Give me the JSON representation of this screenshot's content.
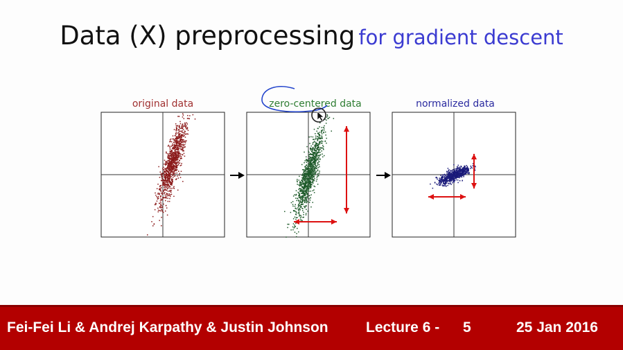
{
  "slide": {
    "title_main": "Data (X) preprocessing",
    "title_sub": "for gradient descent"
  },
  "figure": {
    "plots": [
      {
        "title": "original data",
        "color": "#8b1a1a",
        "title_color": "#a03030"
      },
      {
        "title": "zero-centered data",
        "color": "#1e5a2a",
        "title_color": "#2e7d32"
      },
      {
        "title": "normalized data",
        "color": "#1a1a7a",
        "title_color": "#2a2aa0"
      }
    ],
    "arrow_color": "#dd1111",
    "annotation_color": "#2244cc"
  },
  "chart_data": [
    {
      "type": "scatter",
      "title": "original data",
      "xlim": [
        -10,
        10
      ],
      "ylim": [
        -10,
        10
      ],
      "center": [
        1.5,
        2.0
      ],
      "spread": "elongated diagonal cloud"
    },
    {
      "type": "scatter",
      "title": "zero-centered data",
      "xlim": [
        -10,
        10
      ],
      "ylim": [
        -10,
        10
      ],
      "center": [
        0,
        0
      ],
      "spread": "elongated diagonal cloud"
    },
    {
      "type": "scatter",
      "title": "normalized data",
      "xlim": [
        -10,
        10
      ],
      "ylim": [
        -10,
        10
      ],
      "center": [
        0,
        0
      ],
      "spread": "compact cloud"
    }
  ],
  "footer": {
    "authors": "Fei-Fei Li & Andrej Karpathy & Justin Johnson",
    "lecture": "Lecture 6 -",
    "page": "5",
    "date": "25 Jan 2016"
  }
}
